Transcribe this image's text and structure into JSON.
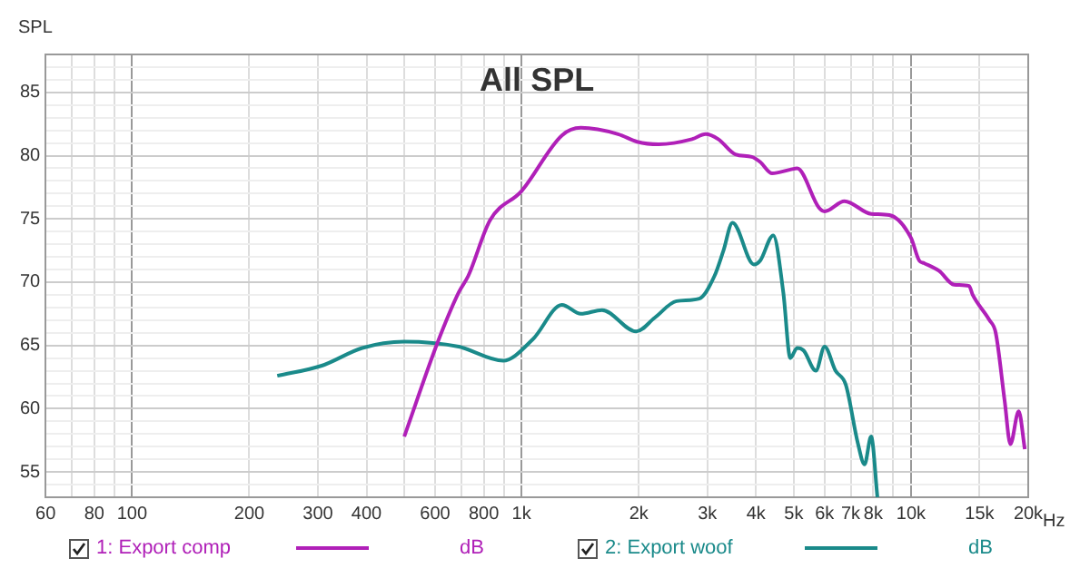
{
  "chart_data": {
    "type": "line",
    "title": "All SPL",
    "ylabel": "SPL",
    "legend": "bottom",
    "grid": true,
    "log": "x",
    "marker": "none",
    "line_style": "solid",
    "annotations": [
      "dB",
      "dB"
    ],
    "xlim": [
      60,
      20000
    ],
    "xticks": [
      60,
      {
        "value": 70,
        "label": null
      },
      80,
      {
        "value": 90,
        "label": null
      },
      100,
      200,
      300,
      400,
      {
        "value": 500,
        "label": null
      },
      600,
      {
        "value": 700,
        "label": null
      },
      800,
      {
        "value": 900,
        "label": null
      },
      {
        "value": 1000,
        "label": "1k"
      },
      {
        "value": 2000,
        "label": "2k"
      },
      {
        "value": 3000,
        "label": "3k"
      },
      {
        "value": 4000,
        "label": "4k"
      },
      {
        "value": 5000,
        "label": "5k"
      },
      {
        "value": 6000,
        "label": "6k"
      },
      {
        "value": 7000,
        "label": "7k"
      },
      {
        "value": 8000,
        "label": "8k"
      },
      {
        "value": 9000,
        "label": null
      },
      {
        "value": 10000,
        "label": "10k"
      },
      {
        "value": 15000,
        "label": "15k"
      },
      {
        "value": 20000,
        "label": "20k"
      }
    ],
    "xlabel": "Hz",
    "ylim": [
      53,
      88
    ],
    "yticks": [
      {
        "value": 54,
        "label": null
      },
      55,
      {
        "value": 56,
        "label": null
      },
      {
        "value": 57,
        "label": null
      },
      {
        "value": 58,
        "label": null
      },
      {
        "value": 59,
        "label": null
      },
      60,
      {
        "value": 61,
        "label": null
      },
      {
        "value": 62,
        "label": null
      },
      {
        "value": 63,
        "label": null
      },
      {
        "value": 64,
        "label": null
      },
      65,
      {
        "value": 66,
        "label": null
      },
      {
        "value": 67,
        "label": null
      },
      {
        "value": 68,
        "label": null
      },
      {
        "value": 69,
        "label": null
      },
      70,
      {
        "value": 71,
        "label": null
      },
      {
        "value": 72,
        "label": null
      },
      {
        "value": 73,
        "label": null
      },
      {
        "value": 74,
        "label": null
      },
      75,
      {
        "value": 76,
        "label": null
      },
      {
        "value": 77,
        "label": null
      },
      {
        "value": 78,
        "label": null
      },
      {
        "value": 79,
        "label": null
      },
      80,
      {
        "value": 81,
        "label": null
      },
      {
        "value": 82,
        "label": null
      },
      {
        "value": 83,
        "label": null
      },
      {
        "value": 84,
        "label": null
      },
      85,
      {
        "value": 86,
        "label": null
      },
      {
        "value": 87,
        "label": null
      }
    ],
    "series": [
      {
        "name": "1: Export comp",
        "color": "#b020b8",
        "x": [
          500,
          610,
          690,
          730,
          830,
          1000,
          1270,
          1420,
          1770,
          1980,
          2250,
          2740,
          2970,
          3200,
          3540,
          3900,
          4100,
          4400,
          4900,
          5100,
          5800,
          6000,
          6750,
          7900,
          8800,
          10000,
          10500,
          10800,
          11800,
          12900,
          14100,
          14400,
          15900,
          16500,
          17400,
          18000,
          18900,
          19600
        ],
        "values": [
          57.8,
          65.3,
          69.2,
          70.5,
          74.9,
          77.2,
          81.6,
          82.2,
          81.7,
          81.1,
          80.9,
          81.3,
          81.7,
          81.3,
          80.1,
          79.9,
          79.5,
          78.6,
          78.9,
          79,
          75.9,
          75.6,
          76.4,
          75.4,
          75.3,
          73.5,
          71.7,
          71.5,
          70.9,
          69.8,
          69.7,
          69,
          67,
          66,
          60.6,
          57.2,
          59.8,
          56.8
        ]
      },
      {
        "name": "2: Export woof",
        "color": "#1a8a8a",
        "x": [
          236,
          307,
          390,
          500,
          690,
          897,
          1070,
          1270,
          1420,
          1610,
          1970,
          2200,
          2500,
          2860,
          3130,
          3300,
          3480,
          3950,
          4100,
          4430,
          4700,
          4900,
          5100,
          5300,
          5700,
          6000,
          6400,
          6800,
          7300,
          7600,
          7900,
          8200
        ],
        "values": [
          62.6,
          63.4,
          64.8,
          65.3,
          64.9,
          63.8,
          65.5,
          68.2,
          67.5,
          67.8,
          66.1,
          67.2,
          68.5,
          68.7,
          70.5,
          72.5,
          74.7,
          71.4,
          71.7,
          73.7,
          69.2,
          64,
          64.8,
          64.6,
          63,
          64.9,
          63,
          61.9,
          57.3,
          55.6,
          57.8,
          53
        ]
      }
    ]
  }
}
